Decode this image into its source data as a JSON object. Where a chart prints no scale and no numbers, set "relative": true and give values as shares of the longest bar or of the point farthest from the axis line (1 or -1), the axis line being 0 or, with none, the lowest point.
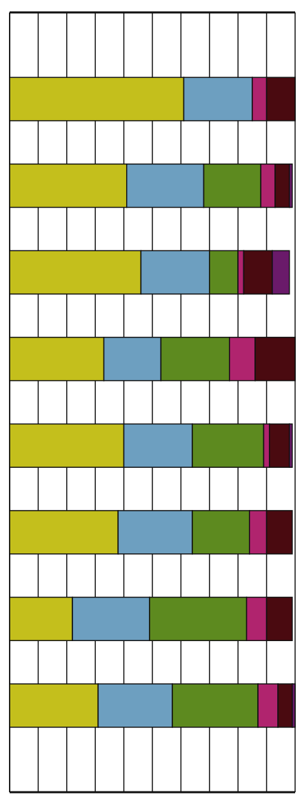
{
  "chart_data": {
    "type": "bar",
    "orientation": "horizontal",
    "stacked": true,
    "relative": true,
    "grid": "x",
    "categories": [
      null,
      null,
      null,
      null,
      null,
      null,
      null,
      null
    ],
    "series": [
      {
        "color": "#c4bf1c",
        "values": [
          0.61,
          0.41,
          0.46,
          0.33,
          0.4,
          0.38,
          0.22,
          0.31
        ]
      },
      {
        "color": "#6d9fc0",
        "values": [
          0.24,
          0.27,
          0.24,
          0.2,
          0.24,
          0.26,
          0.27,
          0.26
        ]
      },
      {
        "color": "#5d8a1f",
        "values": [
          0,
          0.2,
          0.1,
          0.24,
          0.25,
          0.2,
          0.34,
          0.3
        ]
      },
      {
        "color": "#b0246e",
        "values": [
          0.05,
          0.05,
          0.02,
          0.09,
          0.02,
          0.06,
          0.07,
          0.07
        ]
      },
      {
        "color": "#4a0a10",
        "values": [
          0.1,
          0.05,
          0.1,
          0.14,
          0.07,
          0.09,
          0.09,
          0.05
        ]
      },
      {
        "color": "#6a1a6a",
        "values": [
          0,
          0.01,
          0.06,
          0,
          0.01,
          0,
          0,
          0.01
        ]
      }
    ]
  }
}
